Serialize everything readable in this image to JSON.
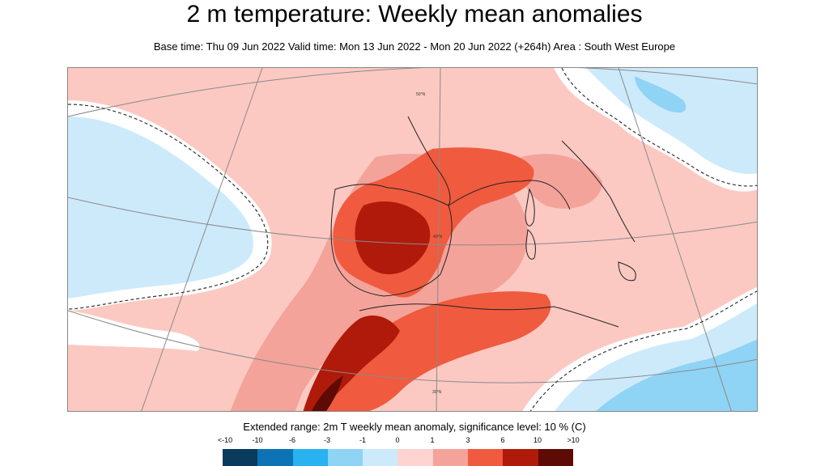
{
  "header": {
    "title": "2 m temperature: Weekly mean anomalies",
    "subtitle": "Base time: Thu 09 Jun 2022 Valid time: Mon 13 Jun 2022 - Mon 20 Jun 2022 (+264h) Area : South West Europe"
  },
  "map": {
    "grid_labels": [
      "50°N",
      "40°N",
      "30°N"
    ]
  },
  "legend": {
    "title": "Extended range: 2m T weekly mean anomaly, significance level: 10 % (C)",
    "tick_labels": [
      "<-10",
      "-10",
      "-6",
      "-3",
      "-1",
      "0",
      "1",
      "3",
      "6",
      "10",
      ">10"
    ],
    "colors": [
      "#0a3a5c",
      "#0d73b5",
      "#29b2f0",
      "#8fd3f5",
      "#cdeafb",
      "#ffd3cf",
      "#f4a39a",
      "#f05a3e",
      "#b01a0a",
      "#5e0a05"
    ]
  }
}
